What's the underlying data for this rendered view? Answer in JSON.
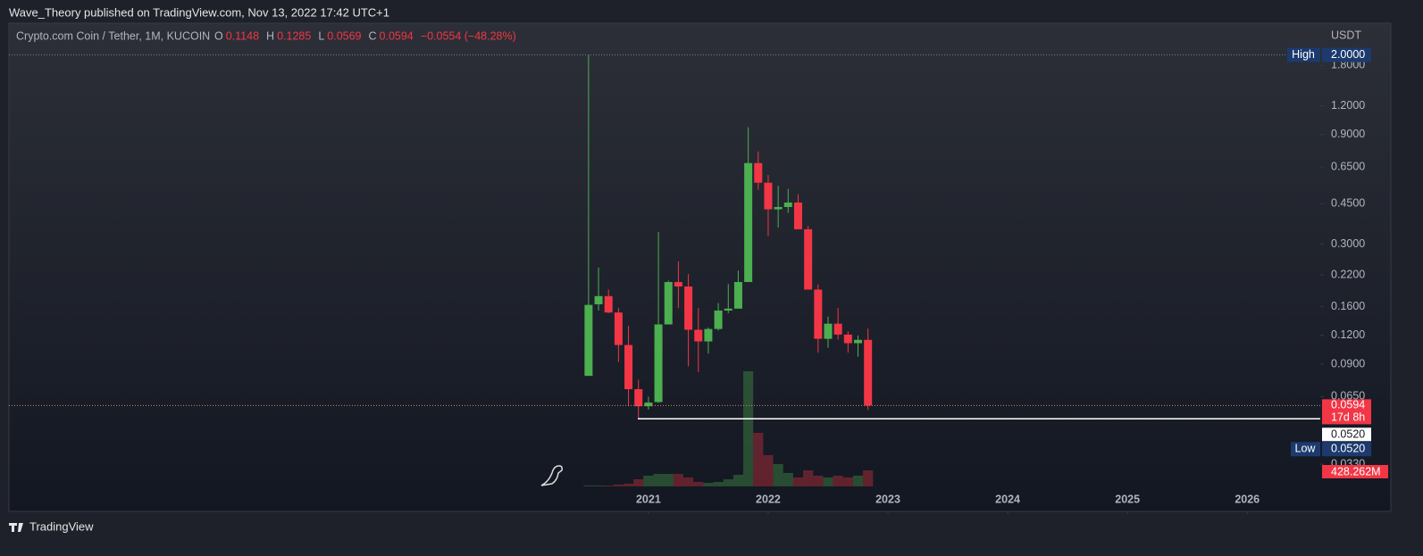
{
  "header": "Wave_Theory published on TradingView.com, Nov 13, 2022 17:42 UTC+1",
  "footer": "TradingView",
  "chart_data": {
    "type": "candlestick",
    "title": "Crypto.com Coin / Tether, 1M, KUCOIN",
    "ohlc_legend": [
      {
        "name": "O",
        "value": 0.1148
      },
      {
        "name": "H",
        "value": 0.1285
      },
      {
        "name": "L",
        "value": 0.0569
      },
      {
        "name": "C",
        "value": 0.0594
      }
    ],
    "change": "−0.0554 (−48.28%)",
    "y_axis_label": "USDT",
    "x": [
      "2020-07",
      "2020-08",
      "2020-09",
      "2020-10",
      "2020-11",
      "2020-12",
      "2021-01",
      "2021-02",
      "2021-03",
      "2021-04",
      "2021-05",
      "2021-06",
      "2021-07",
      "2021-08",
      "2021-09",
      "2021-10",
      "2021-11",
      "2021-12",
      "2022-01",
      "2022-02",
      "2022-03",
      "2022-04",
      "2022-05",
      "2022-06",
      "2022-07",
      "2022-08",
      "2022-09",
      "2022-10",
      "2022-11"
    ],
    "open": [
      0.08,
      0.164,
      0.178,
      0.151,
      0.109,
      0.07,
      0.059,
      0.0615,
      0.134,
      0.205,
      0.196,
      0.127,
      0.113,
      0.128,
      0.154,
      0.157,
      0.205,
      0.676,
      0.555,
      0.425,
      0.435,
      0.455,
      0.348,
      0.19,
      0.116,
      0.135,
      0.121,
      0.111,
      0.1148
    ],
    "high": [
      2.0,
      0.237,
      0.19,
      0.158,
      0.132,
      0.077,
      0.065,
      0.339,
      0.208,
      0.252,
      0.222,
      0.158,
      0.13,
      0.166,
      0.201,
      0.23,
      0.968,
      0.76,
      0.6,
      0.538,
      0.522,
      0.494,
      0.36,
      0.2,
      0.145,
      0.158,
      0.125,
      0.12,
      0.1285
    ],
    "low": [
      0.08,
      0.154,
      0.15,
      0.092,
      0.059,
      0.052,
      0.057,
      0.061,
      0.134,
      0.158,
      0.088,
      0.083,
      0.1,
      0.126,
      0.15,
      0.157,
      0.211,
      0.517,
      0.325,
      0.354,
      0.41,
      0.348,
      0.19,
      0.101,
      0.106,
      0.115,
      0.101,
      0.097,
      0.0569
    ],
    "close": [
      0.163,
      0.178,
      0.151,
      0.109,
      0.07,
      0.059,
      0.0612,
      0.134,
      0.205,
      0.196,
      0.127,
      0.113,
      0.128,
      0.154,
      0.157,
      0.205,
      0.676,
      0.555,
      0.425,
      0.435,
      0.455,
      0.348,
      0.19,
      0.116,
      0.135,
      0.121,
      0.111,
      0.1148,
      0.0594
    ],
    "volume": [
      24,
      24,
      24,
      48,
      71,
      190,
      286,
      333,
      333,
      333,
      238,
      119,
      95,
      119,
      190,
      309,
      3070,
      1428,
      833,
      595,
      357,
      238,
      428,
      286,
      238,
      286,
      238,
      286,
      428.262
    ],
    "volume_last_label": "428.262M",
    "up_color": "#4caf50",
    "down_color": "#f23645",
    "log_scale": true,
    "ylim": [
      0.0264,
      2.7
    ],
    "yticks": [
      {
        "value": 0.033,
        "label": "0.0330"
      },
      {
        "value": 0.065,
        "label": "0.0650"
      },
      {
        "value": 0.09,
        "label": "0.0900"
      },
      {
        "value": 0.12,
        "label": "0.1200"
      },
      {
        "value": 0.16,
        "label": "0.1600"
      },
      {
        "value": 0.22,
        "label": "0.2200"
      },
      {
        "value": 0.3,
        "label": "0.3000"
      },
      {
        "value": 0.45,
        "label": "0.4500"
      },
      {
        "value": 0.65,
        "label": "0.6500"
      },
      {
        "value": 0.9,
        "label": "0.9000"
      },
      {
        "value": 1.2,
        "label": "1.2000"
      },
      {
        "value": 1.8,
        "label": "1.8000"
      }
    ],
    "xlim": [
      2015.66,
      2026.61
    ],
    "xticks": [
      2021,
      2022,
      2023,
      2024,
      2025,
      2026
    ],
    "high_marker": {
      "name": "High",
      "value": 2,
      "label": "2.0000"
    },
    "low_marker": {
      "name": "Low",
      "value": 0.052,
      "label": "0.0520"
    },
    "horizontal_line": {
      "value": 0.052,
      "label": "0.0520"
    },
    "last_price": {
      "value": 0.0594,
      "label": "0.0594",
      "countdown": "17d 8h"
    }
  }
}
